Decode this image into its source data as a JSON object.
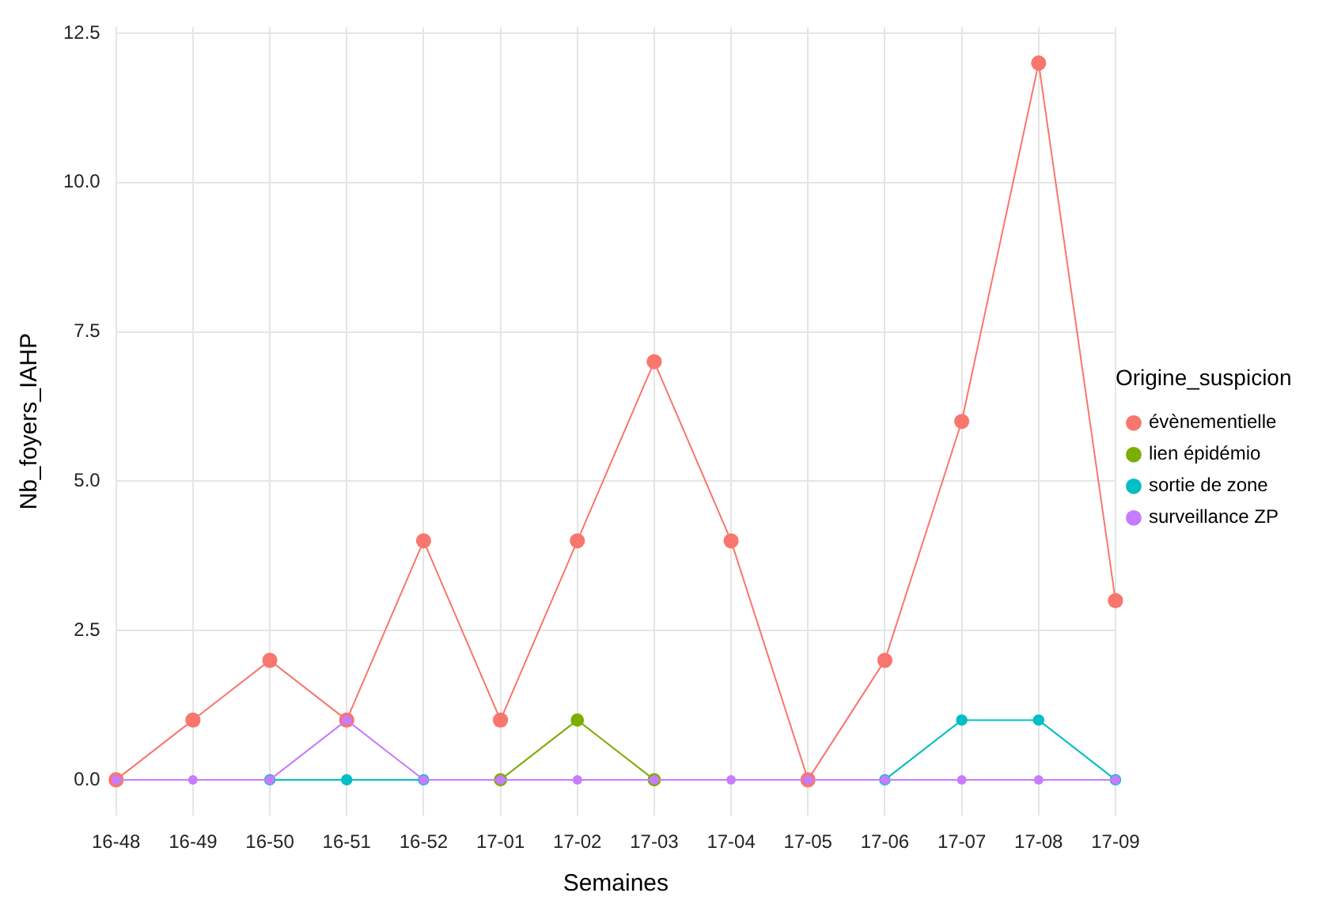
{
  "chart_data": {
    "type": "line",
    "xlabel": "Semaines",
    "ylabel": "Nb_foyers_IAHP",
    "legend_title": "Origine_suspicion",
    "categories": [
      "16-48",
      "16-49",
      "16-50",
      "16-51",
      "16-52",
      "17-01",
      "17-02",
      "17-03",
      "17-04",
      "17-05",
      "17-06",
      "17-07",
      "17-08",
      "17-09"
    ],
    "series": [
      {
        "name": "évènementielle",
        "color": "#f8766d",
        "values": [
          0,
          1,
          2,
          1,
          4,
          1,
          4,
          7,
          4,
          0,
          2,
          6,
          12,
          3
        ]
      },
      {
        "name": "lien épidémio",
        "color": "#7cae00",
        "values": [
          null,
          null,
          null,
          null,
          null,
          0,
          1,
          0,
          null,
          null,
          null,
          null,
          null,
          null
        ]
      },
      {
        "name": "sortie de zone",
        "color": "#00bfc4",
        "values": [
          null,
          null,
          0,
          0,
          0,
          null,
          null,
          null,
          null,
          null,
          0,
          1,
          1,
          0
        ]
      },
      {
        "name": "surveillance ZP",
        "color": "#c77cff",
        "values": [
          0,
          0,
          0,
          1,
          0,
          0,
          0,
          0,
          0,
          0,
          0,
          0,
          0,
          0
        ]
      }
    ],
    "ylim": [
      -0.6,
      12.6
    ],
    "yticks": [
      {
        "value": 0,
        "label": "0.0"
      },
      {
        "value": 2.5,
        "label": "2.5"
      },
      {
        "value": 5,
        "label": "5.0"
      },
      {
        "value": 7.5,
        "label": "7.5"
      },
      {
        "value": 10,
        "label": "10.0"
      },
      {
        "value": 12.5,
        "label": "12.5"
      }
    ],
    "grid": true,
    "legend": "right",
    "marker": "circle",
    "line_style": "solid"
  }
}
